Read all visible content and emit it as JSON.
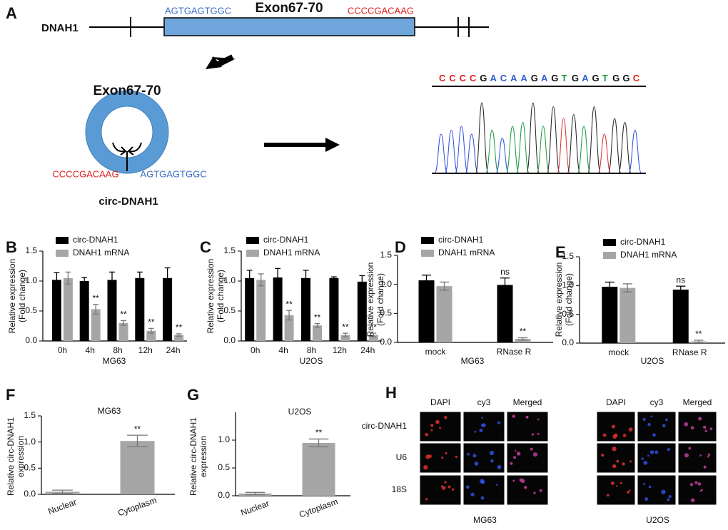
{
  "panel_a": {
    "label": "A",
    "gene": "DNAH1",
    "exon_top": "Exon67-70",
    "left_seq_top": "AGTGAGTGGC",
    "right_seq_top": "CCCCGACAAG",
    "exon_circle": "Exon67-70",
    "left_junction": "CCCCGACAAG",
    "right_junction": "AGTGAGTGGC",
    "circ_name": "circ-DNAH1",
    "sanger_sequence": "CCCCGACAAGAGTGAGTGGC"
  },
  "chart_data": [
    {
      "type": "bar",
      "panel": "B",
      "x_label": "MG63",
      "y_label": [
        "Relative expression",
        "(Fold change)"
      ],
      "categories": [
        "0h",
        "4h",
        "8h",
        "12h",
        "24h"
      ],
      "series": [
        {
          "name": "circ-DNAH1",
          "color": "#000000",
          "values": [
            1.02,
            1.0,
            1.02,
            1.05,
            1.05
          ],
          "errors": [
            0.12,
            0.06,
            0.13,
            0.1,
            0.17
          ],
          "significance": [
            null,
            null,
            null,
            null,
            null
          ]
        },
        {
          "name": "DNAH1 mRNA",
          "color": "#a6a6a6",
          "values": [
            1.05,
            0.53,
            0.3,
            0.17,
            0.1
          ],
          "errors": [
            0.1,
            0.08,
            0.04,
            0.04,
            0.02
          ],
          "significance": [
            null,
            "**",
            "**",
            "**",
            "**"
          ]
        }
      ],
      "ylim": [
        0,
        1.5
      ],
      "yticks": [
        {
          "value": 0,
          "label": "0.0"
        },
        0.5,
        {
          "value": 1,
          "label": "1.0"
        },
        1.5
      ],
      "legend": "top-left"
    },
    {
      "type": "bar",
      "panel": "C",
      "x_label": "U2OS",
      "y_label": [
        "Relative expression",
        "(Fold change)"
      ],
      "categories": [
        "0h",
        "4h",
        "8h",
        "12h",
        "24h"
      ],
      "series": [
        {
          "name": "circ-DNAH1",
          "color": "#000000",
          "values": [
            1.05,
            1.06,
            1.05,
            1.05,
            0.99
          ],
          "errors": [
            0.13,
            0.15,
            0.13,
            0.02,
            0.1
          ],
          "significance": [
            null,
            null,
            null,
            null,
            null
          ]
        },
        {
          "name": "DNAH1 mRNA",
          "color": "#a6a6a6",
          "values": [
            1.02,
            0.43,
            0.26,
            0.1,
            0.1
          ],
          "errors": [
            0.1,
            0.08,
            0.03,
            0.03,
            0.03
          ],
          "significance": [
            null,
            "**",
            "**",
            "**",
            "**"
          ]
        }
      ],
      "ylim": [
        0,
        1.5
      ],
      "yticks": [
        {
          "value": 0,
          "label": "0.0"
        },
        0.5,
        {
          "value": 1,
          "label": "1.0"
        },
        1.5
      ],
      "legend": "top-left"
    },
    {
      "type": "bar",
      "panel": "D",
      "x_label": "MG63",
      "y_label": [
        "Relative expression",
        "(Fold change)"
      ],
      "categories": [
        "mock",
        "RNase R"
      ],
      "series": [
        {
          "name": "circ-DNAH1",
          "color": "#000000",
          "values": [
            1.07,
            0.99
          ],
          "errors": [
            0.09,
            0.12
          ],
          "significance": [
            null,
            "ns"
          ]
        },
        {
          "name": "DNAH1 mRNA",
          "color": "#a6a6a6",
          "values": [
            0.97,
            0.06
          ],
          "errors": [
            0.07,
            0.02
          ],
          "significance": [
            null,
            "**"
          ]
        }
      ],
      "ylim": [
        0,
        1.5
      ],
      "yticks": [
        {
          "value": 0,
          "label": "0.0"
        },
        0.5,
        {
          "value": 1,
          "label": "1.0"
        },
        1.5
      ],
      "legend": "top-left"
    },
    {
      "type": "bar",
      "panel": "E",
      "x_label": "U2OS",
      "y_label": [
        "Relative expression",
        "(Fold change)"
      ],
      "categories": [
        "mock",
        "RNase R"
      ],
      "series": [
        {
          "name": "circ-DNAH1",
          "color": "#000000",
          "values": [
            0.98,
            0.93
          ],
          "errors": [
            0.08,
            0.06
          ],
          "significance": [
            null,
            "ns"
          ]
        },
        {
          "name": "DNAH1 mRNA",
          "color": "#a6a6a6",
          "values": [
            0.96,
            0.03
          ],
          "errors": [
            0.07,
            0.02
          ],
          "significance": [
            null,
            "**"
          ]
        }
      ],
      "ylim": [
        0,
        1.5
      ],
      "yticks": [
        {
          "value": 0,
          "label": "0.0"
        },
        0.5,
        {
          "value": 1,
          "label": "1.0"
        },
        1.5
      ],
      "legend": "top-left"
    },
    {
      "type": "bar",
      "panel": "F",
      "title": "MG63",
      "y_label": [
        "Relative circ-DNAH1",
        "expression"
      ],
      "categories": [
        "Nuclear",
        "Cytoplasm"
      ],
      "color": "#a6a6a6",
      "values": [
        0.05,
        1.02
      ],
      "errors": [
        0.03,
        0.11
      ],
      "significance": [
        null,
        "**"
      ],
      "ylim": [
        0,
        1.5
      ],
      "yticks": [
        {
          "value": 0,
          "label": "0.0"
        },
        0.5,
        {
          "value": 1,
          "label": "1.0"
        },
        1.5
      ]
    },
    {
      "type": "bar",
      "panel": "G",
      "title": "U2OS",
      "y_label": [
        "Relative circ-DNAH1",
        "expression"
      ],
      "categories": [
        "Nuclear",
        "Cytoplasm"
      ],
      "color": "#a6a6a6",
      "values": [
        0.04,
        0.95
      ],
      "errors": [
        0.02,
        0.07
      ],
      "significance": [
        null,
        "**"
      ],
      "ylim": [
        0,
        1.5
      ],
      "yticks": [
        {
          "value": 0,
          "label": "0.0"
        },
        0.5,
        {
          "value": 1,
          "label": "1.0"
        }
      ]
    }
  ],
  "panel_h": {
    "label": "H",
    "rows": [
      "circ-DNAH1",
      "U6",
      "18S"
    ],
    "groups": [
      {
        "cell_line": "MG63",
        "columns": [
          "DAPI",
          "cy3",
          "Merged"
        ]
      },
      {
        "cell_line": "U2OS",
        "columns": [
          "DAPI",
          "cy3",
          "Merged"
        ]
      }
    ]
  }
}
